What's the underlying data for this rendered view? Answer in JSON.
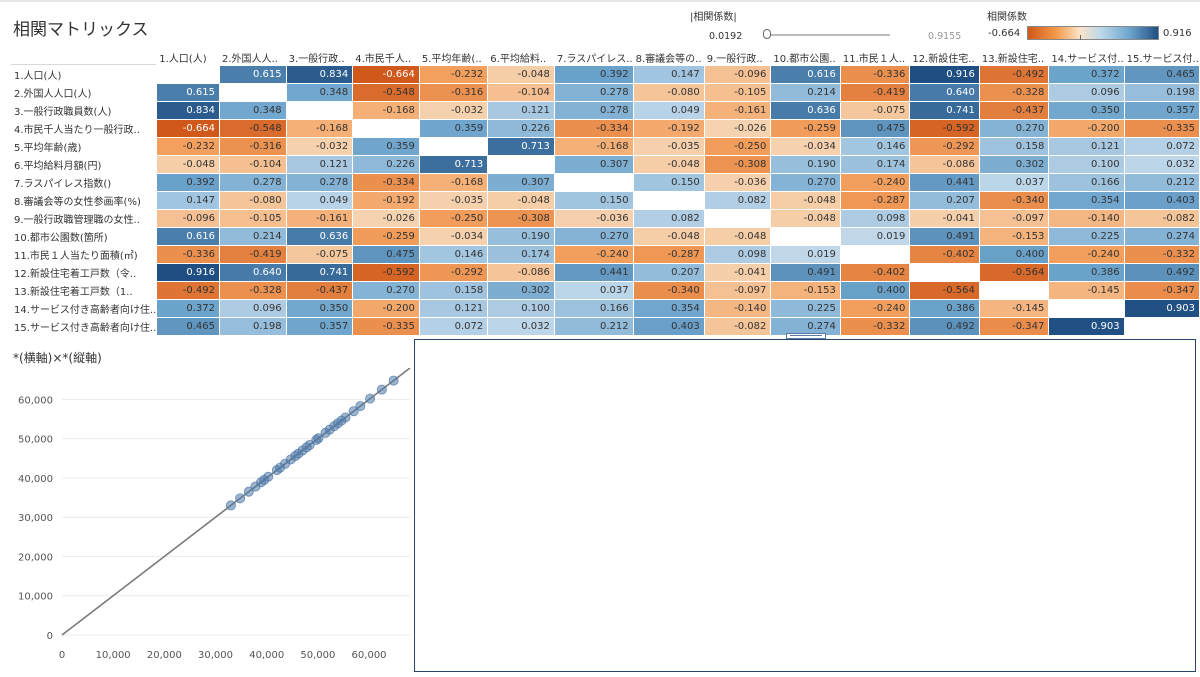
{
  "title": "相関マトリックス",
  "filter": {
    "title": "|相関係数|",
    "min_label": "0.0192",
    "max_label": "0.9155"
  },
  "legend": {
    "title": "相関係数",
    "min_label": "-0.664",
    "max_label": "0.916"
  },
  "column_labels": [
    "1.人口(人)",
    "2.外国人人..",
    "3.一般行政..",
    "4.市民千人..",
    "5.平均年齢(..",
    "6.平均給料..",
    "7.ラスパイレス..",
    "8.審議会等の..",
    "9.一般行政..",
    "10.都市公園..",
    "11.市民１人..",
    "12.新設住宅..",
    "13.新設住宅..",
    "14.サービス付..",
    "15.サービス付.."
  ],
  "row_labels": [
    "1.人口(人)",
    "2.外国人人口(人)",
    "3.一般行政職員数(人)",
    "4.市民千人当たり一般行政..",
    "5.平均年齢(歳)",
    "6.平均給料月額(円)",
    "7.ラスパイレス指数()",
    "8.審議会等の女性参画率(%)",
    "9.一般行政職管理職の女性..",
    "10.都市公園数(箇所)",
    "11.市民１人当たり面積(㎡)",
    "12.新設住宅着工戸数（令..",
    "13.新設住宅着工戸数（1..",
    "14.サービス付き高齢者向け住..",
    "15.サービス付き高齢者向け住.."
  ],
  "matrix": [
    [
      "",
      "0.615",
      "0.834",
      "-0.664",
      "-0.232",
      "-0.048",
      "0.392",
      "0.147",
      "-0.096",
      "0.616",
      "-0.336",
      "0.916",
      "-0.492",
      "0.372",
      "0.465"
    ],
    [
      "0.615",
      "",
      "0.348",
      "-0.548",
      "-0.316",
      "-0.104",
      "0.278",
      "-0.080",
      "-0.105",
      "0.214",
      "-0.419",
      "0.640",
      "-0.328",
      "0.096",
      "0.198"
    ],
    [
      "0.834",
      "0.348",
      "",
      "-0.168",
      "-0.032",
      "0.121",
      "0.278",
      "0.049",
      "-0.161",
      "0.636",
      "-0.075",
      "0.741",
      "-0.437",
      "0.350",
      "0.357"
    ],
    [
      "-0.664",
      "-0.548",
      "-0.168",
      "",
      "0.359",
      "0.226",
      "-0.334",
      "-0.192",
      "-0.026",
      "-0.259",
      "0.475",
      "-0.592",
      "0.270",
      "-0.200",
      "-0.335"
    ],
    [
      "-0.232",
      "-0.316",
      "-0.032",
      "0.359",
      "",
      "0.713",
      "-0.168",
      "-0.035",
      "-0.250",
      "-0.034",
      "0.146",
      "-0.292",
      "0.158",
      "0.121",
      "0.072"
    ],
    [
      "-0.048",
      "-0.104",
      "0.121",
      "0.226",
      "0.713",
      "",
      "0.307",
      "-0.048",
      "-0.308",
      "0.190",
      "0.174",
      "-0.086",
      "0.302",
      "0.100",
      "0.032"
    ],
    [
      "0.392",
      "0.278",
      "0.278",
      "-0.334",
      "-0.168",
      "0.307",
      "",
      "0.150",
      "-0.036",
      "0.270",
      "-0.240",
      "0.441",
      "0.037",
      "0.166",
      "0.212"
    ],
    [
      "0.147",
      "-0.080",
      "0.049",
      "-0.192",
      "-0.035",
      "-0.048",
      "0.150",
      "",
      "0.082",
      "-0.048",
      "-0.287",
      "0.207",
      "-0.340",
      "0.354",
      "0.403"
    ],
    [
      "-0.096",
      "-0.105",
      "-0.161",
      "-0.026",
      "-0.250",
      "-0.308",
      "-0.036",
      "0.082",
      "",
      "-0.048",
      "0.098",
      "-0.041",
      "-0.097",
      "-0.140",
      "-0.082"
    ],
    [
      "0.616",
      "0.214",
      "0.636",
      "-0.259",
      "-0.034",
      "0.190",
      "0.270",
      "-0.048",
      "-0.048",
      "",
      "0.019",
      "0.491",
      "-0.153",
      "0.225",
      "0.274"
    ],
    [
      "-0.336",
      "-0.419",
      "-0.075",
      "0.475",
      "0.146",
      "0.174",
      "-0.240",
      "-0.287",
      "0.098",
      "0.019",
      "",
      "-0.402",
      "0.400",
      "-0.240",
      "-0.332"
    ],
    [
      "0.916",
      "0.640",
      "0.741",
      "-0.592",
      "-0.292",
      "-0.086",
      "0.441",
      "0.207",
      "-0.041",
      "0.491",
      "-0.402",
      "",
      "-0.564",
      "0.386",
      "0.492"
    ],
    [
      "-0.492",
      "-0.328",
      "-0.437",
      "0.270",
      "0.158",
      "0.302",
      "0.037",
      "-0.340",
      "-0.097",
      "-0.153",
      "0.400",
      "-0.564",
      "",
      "-0.145",
      "-0.347"
    ],
    [
      "0.372",
      "0.096",
      "0.350",
      "-0.200",
      "0.121",
      "0.100",
      "0.166",
      "0.354",
      "-0.140",
      "0.225",
      "-0.240",
      "0.386",
      "-0.145",
      "",
      "0.903"
    ],
    [
      "0.465",
      "0.198",
      "0.357",
      "-0.335",
      "0.072",
      "0.032",
      "0.212",
      "0.403",
      "-0.082",
      "0.274",
      "-0.332",
      "0.492",
      "-0.347",
      "0.903",
      ""
    ]
  ],
  "colors": {
    "negative": "#d0581a",
    "neutral": "#cccccc",
    "positive": "#1f4f82",
    "point": "#4e79a7",
    "line": "#7a7a7a"
  },
  "scatter_title": "*(横軸)×*(縦軸)",
  "chart_data": {
    "type": "scatter",
    "title": "*(横軸)×*(縦軸)",
    "xlabel": "",
    "ylabel": "",
    "xlim": [
      0,
      68000
    ],
    "ylim": [
      0,
      68000
    ],
    "x_ticks": [
      "0",
      "10,000",
      "20,000",
      "30,000",
      "40,000",
      "50,000",
      "60,000"
    ],
    "y_ticks": [
      "0",
      "10,000",
      "20,000",
      "30,000",
      "40,000",
      "50,000",
      "60,000"
    ],
    "points": [
      [
        33000,
        33000
      ],
      [
        34800,
        34800
      ],
      [
        36500,
        36500
      ],
      [
        37800,
        37800
      ],
      [
        38900,
        38900
      ],
      [
        39500,
        39500
      ],
      [
        40300,
        40300
      ],
      [
        42000,
        42000
      ],
      [
        42600,
        42600
      ],
      [
        43600,
        43600
      ],
      [
        44700,
        44700
      ],
      [
        45600,
        45600
      ],
      [
        46200,
        46200
      ],
      [
        47000,
        47000
      ],
      [
        47800,
        47800
      ],
      [
        48400,
        48400
      ],
      [
        49700,
        49700
      ],
      [
        50100,
        50100
      ],
      [
        51500,
        51500
      ],
      [
        52300,
        52300
      ],
      [
        53200,
        53200
      ],
      [
        53900,
        53900
      ],
      [
        54600,
        54600
      ],
      [
        55400,
        55400
      ],
      [
        57000,
        57000
      ],
      [
        58300,
        58300
      ],
      [
        60200,
        60200
      ],
      [
        62500,
        62500
      ],
      [
        64800,
        64800
      ]
    ],
    "trend_line": [
      [
        0,
        0
      ],
      [
        68000,
        68000
      ]
    ]
  },
  "empty_panel": ""
}
